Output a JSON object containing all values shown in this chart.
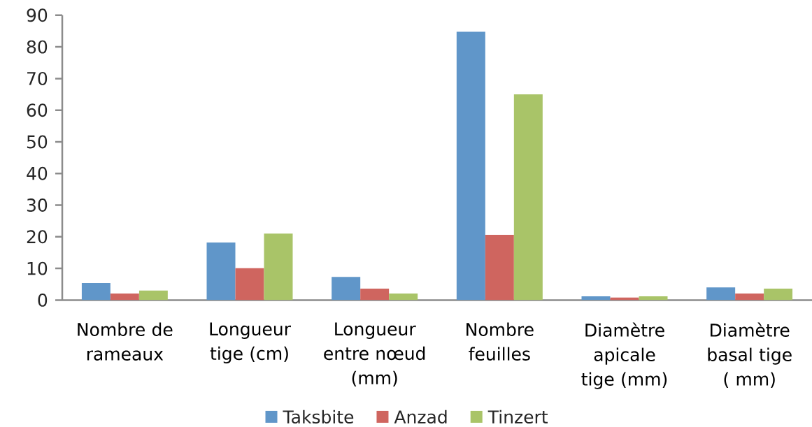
{
  "chart_data": {
    "type": "bar",
    "categories": [
      "Nombre de rameaux",
      "Longueur tige (cm)",
      "Longueur entre nœud (mm)",
      "Nombre feuilles",
      "Diamètre apicale tige (mm)",
      "Diamètre basal tige ( mm)"
    ],
    "series": [
      {
        "name": "Taksbite",
        "color": "#6096c9",
        "values": [
          5.4,
          18.2,
          7.3,
          84.8,
          1.2,
          4.0
        ]
      },
      {
        "name": "Anzad",
        "color": "#cf655f",
        "values": [
          2.1,
          10.1,
          3.6,
          20.6,
          0.8,
          2.1
        ]
      },
      {
        "name": "Tinzert",
        "color": "#a9c468",
        "values": [
          3.0,
          21.0,
          2.1,
          65.0,
          1.2,
          3.6
        ]
      }
    ],
    "ylim": [
      0,
      90
    ],
    "yticks": [
      0,
      10,
      20,
      30,
      40,
      50,
      60,
      70,
      80,
      90
    ],
    "legend": "bottom"
  }
}
